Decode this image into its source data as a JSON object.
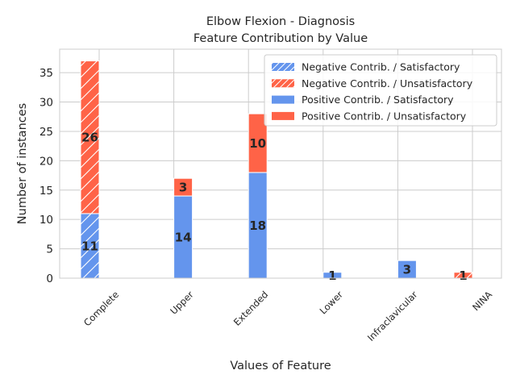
{
  "chart_data": {
    "type": "bar",
    "stacked": true,
    "title": "Elbow Flexion - Diagnosis",
    "subtitle": "Feature Contribution by Value",
    "xlabel": "Values of Feature",
    "ylabel": "Number of instances",
    "ylim": [
      0,
      39
    ],
    "yticks": [
      0,
      5,
      10,
      15,
      20,
      25,
      30,
      35
    ],
    "grid": true,
    "legend_position": "top-right",
    "categories": [
      "Complete",
      "Upper",
      "Extended",
      "Lower",
      "Infraclavicular",
      "NINA"
    ],
    "colors": {
      "satisfactory": "#6495ED",
      "unsatisfactory": "#FF6347"
    },
    "series": [
      {
        "name": "Negative Contrib. / Satisfactory",
        "group": "negative",
        "outcome": "satisfactory",
        "hatch": true,
        "values": [
          11,
          0,
          0,
          0,
          0,
          0
        ]
      },
      {
        "name": "Negative Contrib. / Unsatisfactory",
        "group": "negative",
        "outcome": "unsatisfactory",
        "hatch": true,
        "values": [
          26,
          0,
          0,
          0,
          0,
          1
        ]
      },
      {
        "name": "Positive Contrib. / Satisfactory",
        "group": "positive",
        "outcome": "satisfactory",
        "hatch": false,
        "values": [
          0,
          14,
          18,
          1,
          3,
          0
        ]
      },
      {
        "name": "Positive Contrib. / Unsatisfactory",
        "group": "positive",
        "outcome": "unsatisfactory",
        "hatch": false,
        "values": [
          0,
          3,
          10,
          0,
          0,
          0
        ]
      }
    ]
  }
}
